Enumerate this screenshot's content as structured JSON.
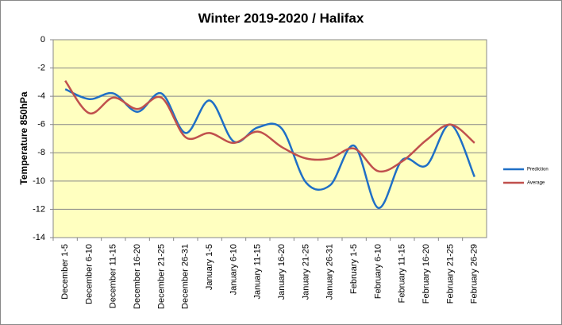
{
  "chart_data": {
    "type": "line",
    "title": "Winter 2019-2020 / Halifax",
    "ylabel": "Temperature 850hPa",
    "categories": [
      "December 1-5",
      "December 6-10",
      "December 11-15",
      "December 16-20",
      "December 21-25",
      "December 26-31",
      "January 1-5",
      "January 6-10",
      "January 11-15",
      "January 16-20",
      "January 21-25",
      "January 26-31",
      "February 1-5",
      "February 6-10",
      "February 11-15",
      "February 16-20",
      "February 21-25",
      "February 26-29"
    ],
    "series": [
      {
        "name": "Prediction",
        "color": "#1f6fc6",
        "values": [
          -3.5,
          -4.2,
          -3.8,
          -5.1,
          -3.8,
          -6.6,
          -4.3,
          -7.2,
          -6.2,
          -6.3,
          -10.1,
          -10.3,
          -7.5,
          -11.9,
          -8.5,
          -8.9,
          -6.0,
          -9.7
        ]
      },
      {
        "name": "Average",
        "color": "#c0504d",
        "values": [
          -2.9,
          -5.2,
          -4.1,
          -4.9,
          -4.1,
          -6.9,
          -6.6,
          -7.3,
          -6.5,
          -7.6,
          -8.4,
          -8.4,
          -7.7,
          -9.3,
          -8.6,
          -7.1,
          -6.0,
          -7.3
        ]
      }
    ],
    "ylim": [
      -14,
      0
    ],
    "yticks": [
      0,
      -2,
      -4,
      -6,
      -8,
      -10,
      -12,
      -14
    ],
    "grid": true,
    "legend": "right"
  }
}
